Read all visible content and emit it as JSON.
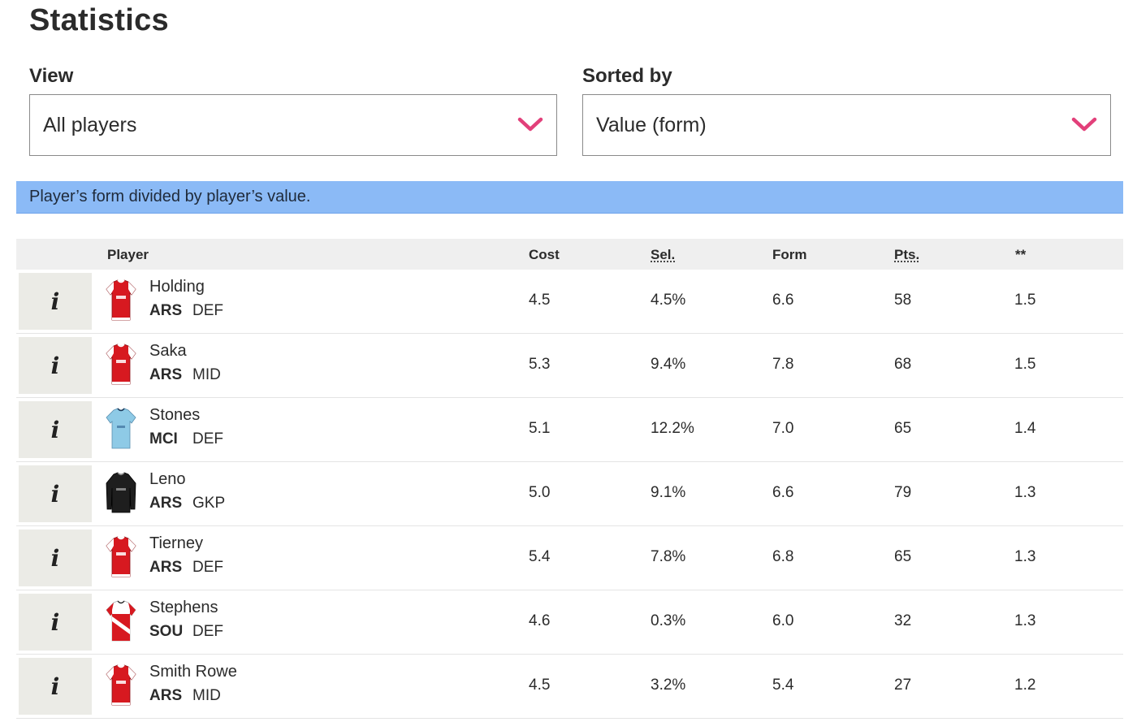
{
  "page": {
    "title": "Statistics"
  },
  "filters": {
    "view": {
      "label": "View",
      "value": "All players"
    },
    "sort": {
      "label": "Sorted by",
      "value": "Value (form)"
    }
  },
  "info_banner": {
    "text": "Player’s form divided by player’s value."
  },
  "colors": {
    "banner": "#8bbaf6",
    "chevron": "#e2407a",
    "header_bg": "#efefef",
    "info_button_bg": "#ebebe6",
    "shirt_red": "#d71920",
    "shirt_sky": "#8ecae6",
    "shirt_black": "#1e1e1e"
  },
  "table": {
    "headers": {
      "player": "Player",
      "cost": "Cost",
      "sel": "Sel.",
      "form": "Form",
      "pts": "Pts.",
      "extra": "**"
    },
    "rows": [
      {
        "name": "Holding",
        "team": "ARS",
        "pos": "DEF",
        "cost": "4.5",
        "sel": "4.5%",
        "form": "6.6",
        "pts": "58",
        "extra": "1.5",
        "shirt": "red-white-sleeves-shirt-icon",
        "info": "i"
      },
      {
        "name": "Saka",
        "team": "ARS",
        "pos": "MID",
        "cost": "5.3",
        "sel": "9.4%",
        "form": "7.8",
        "pts": "68",
        "extra": "1.5",
        "shirt": "red-white-sleeves-shirt-icon",
        "info": "i"
      },
      {
        "name": "Stones",
        "team": "MCI",
        "pos": "DEF",
        "cost": "5.1",
        "sel": "12.2%",
        "form": "7.0",
        "pts": "65",
        "extra": "1.4",
        "shirt": "sky-blue-shirt-icon",
        "info": "i"
      },
      {
        "name": "Leno",
        "team": "ARS",
        "pos": "GKP",
        "cost": "5.0",
        "sel": "9.1%",
        "form": "6.6",
        "pts": "79",
        "extra": "1.3",
        "shirt": "black-goalkeeper-shirt-icon",
        "info": "i"
      },
      {
        "name": "Tierney",
        "team": "ARS",
        "pos": "DEF",
        "cost": "5.4",
        "sel": "7.8%",
        "form": "6.8",
        "pts": "65",
        "extra": "1.3",
        "shirt": "red-white-sleeves-shirt-icon",
        "info": "i"
      },
      {
        "name": "Stephens",
        "team": "SOU",
        "pos": "DEF",
        "cost": "4.6",
        "sel": "0.3%",
        "form": "6.0",
        "pts": "32",
        "extra": "1.3",
        "shirt": "red-white-sash-shirt-icon",
        "info": "i"
      },
      {
        "name": "Smith Rowe",
        "team": "ARS",
        "pos": "MID",
        "cost": "4.5",
        "sel": "3.2%",
        "form": "5.4",
        "pts": "27",
        "extra": "1.2",
        "shirt": "red-white-sleeves-shirt-icon",
        "info": "i"
      }
    ]
  }
}
